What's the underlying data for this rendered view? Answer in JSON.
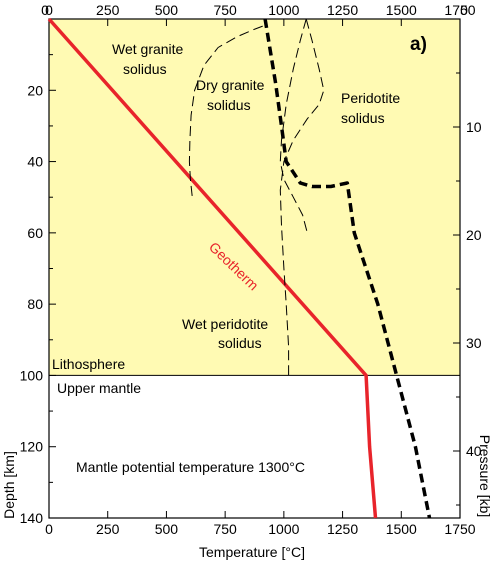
{
  "chart_data": {
    "type": "line",
    "xlabel": "Temperature [°C]",
    "ylabel": "Depth [km]",
    "y2label": "Pressure [kb]",
    "panel_label": "a)",
    "xlim": [
      0,
      1750
    ],
    "ylim": [
      0,
      140
    ],
    "y_inverted": true,
    "x_ticks": [
      0,
      250,
      500,
      750,
      1000,
      1250,
      1500,
      1750
    ],
    "y_ticks": [
      20,
      40,
      60,
      80,
      100,
      120,
      140
    ],
    "pressure_ticks": [
      10,
      20,
      30,
      40
    ],
    "pressure_km_per_kb": 3.03,
    "x_tick_labels": [
      "0",
      "250",
      "500",
      "750",
      "1000",
      "1250",
      "1500",
      "1750"
    ],
    "y_tick_labels": [
      "20",
      "40",
      "60",
      "80",
      "100",
      "120",
      "140"
    ],
    "top_y_label": "0",
    "pressure_tick_labels": [
      "10",
      "20",
      "30",
      "40"
    ],
    "top_pressure_label": "0",
    "regions": [
      {
        "name": "Lithosphere",
        "depth_range": [
          0,
          100
        ],
        "color": "#FFFAB3"
      },
      {
        "name": "Upper mantle",
        "depth_range": [
          100,
          140
        ],
        "color": "#FFFFFF"
      }
    ],
    "region_labels": {
      "lithosphere": "Lithosphere",
      "upper_mantle": "Upper mantle"
    },
    "annotations": {
      "potential_temperature": "Mantle potential temperature 1300°C"
    },
    "series": [
      {
        "name": "Geotherm",
        "style": "solid",
        "color": "#E8242B",
        "x": [
          0,
          1350,
          1365,
          1390
        ],
        "y": [
          0,
          100,
          120,
          140
        ]
      },
      {
        "name": "Peridotite solidus",
        "style": "thick-dashed",
        "color": "#000000",
        "x": [
          920,
          965,
          990,
          1010,
          1050,
          1070,
          1120,
          1200,
          1270,
          1300,
          1400,
          1480,
          1560,
          1620
        ],
        "y": [
          0,
          18,
          30,
          40,
          44,
          46,
          47,
          47,
          46,
          60,
          80,
          100,
          120,
          140
        ]
      },
      {
        "name": "Wet granite solidus",
        "style": "thin-dashed",
        "color": "#000000",
        "x": [
          910,
          870,
          800,
          720,
          660,
          620,
          605,
          600,
          598,
          602,
          610
        ],
        "y": [
          2,
          3,
          5,
          8,
          13,
          20,
          27,
          34,
          40,
          45,
          50
        ]
      },
      {
        "name": "Dry granite solidus",
        "style": "thin-dashed",
        "color": "#000000",
        "x": [
          1095,
          1070,
          1040,
          1010,
          990,
          985,
          1000,
          1040,
          1080,
          1100
        ],
        "y": [
          0,
          6,
          14,
          24,
          34,
          40,
          45,
          50,
          55,
          60
        ]
      },
      {
        "name": "Wet peridotite solidus",
        "style": "thin-dashed",
        "color": "#000000",
        "x": [
          1095,
          1120,
          1150,
          1170,
          1150,
          1100,
          1040,
          1000,
          985,
          990,
          1000,
          1010,
          1020,
          1020
        ],
        "y": [
          0,
          6,
          14,
          20,
          24,
          28,
          34,
          40,
          48,
          58,
          70,
          80,
          92,
          100
        ]
      }
    ],
    "series_labels": {
      "geotherm": "Geotherm",
      "wet_granite_1": "Wet granite",
      "wet_granite_2": "solidus",
      "dry_granite_1": "Dry granite",
      "dry_granite_2": "solidus",
      "peridotite_1": "Peridotite",
      "peridotite_2": "solidus",
      "wet_peridotite_1": "Wet peridotite",
      "wet_peridotite_2": "solidus"
    }
  }
}
